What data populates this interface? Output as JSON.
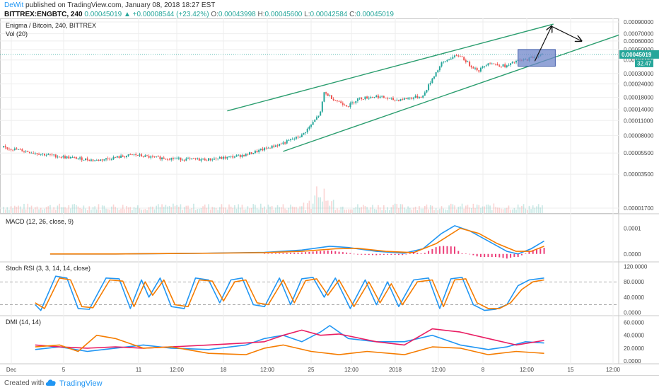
{
  "header": {
    "author": "DeWit",
    "published_text": "published on TradingView.com, January 08, 2018 18:27 EST",
    "symbol": "BITTREX:ENGBTC, 240",
    "last_price": "0.00045019",
    "change": "+0.00008544 (+23.42%)",
    "open_label": "O:",
    "open": "0.00043998",
    "high_label": "H:",
    "high": "0.00045600",
    "low_label": "L:",
    "low": "0.00042584",
    "close_label": "C:",
    "close": "0.00045019"
  },
  "footer": {
    "created_with": "Created with",
    "brand": "TradingView"
  },
  "colors": {
    "up": "#26a69a",
    "down": "#ef5350",
    "channel": "#2a9d6e",
    "macd": "#2196f3",
    "signal": "#f57c00",
    "histogram": "#e91e63",
    "di_plus": "#2196f3",
    "di_minus": "#e91e63",
    "adx": "#f57c00",
    "target_box": "#6f86c9"
  },
  "chart_data": [
    {
      "type": "candlestick",
      "title": "Enigma / Bitcoin, 240, BITTREX",
      "volume_label": "Vol (20)",
      "y_scale": "log",
      "y_ticks": [
        "0.00090000",
        "0.00070000",
        "0.00060000",
        "0.00050000",
        "0.00040000",
        "0.00030000",
        "0.00024000",
        "0.00018000",
        "0.00014000",
        "0.00011000",
        "0.00008000",
        "0.00005500",
        "0.00003500",
        "0.00001700"
      ],
      "last_price_tag": "0.00045019",
      "volume_tag": "32.47",
      "x_ticks": [
        "Dec",
        "5",
        "11",
        "12:00",
        "18",
        "12:00",
        "25",
        "12:00",
        "2018",
        "12:00",
        "8",
        "12:00",
        "15",
        "12:00"
      ],
      "close_path": [
        [
          0,
          6.2e-05
        ],
        [
          10,
          5.8e-05
        ],
        [
          20,
          5.4e-05
        ],
        [
          30,
          5.1e-05
        ],
        [
          40,
          4.9e-05
        ],
        [
          50,
          4.7e-05
        ],
        [
          60,
          5e-05
        ],
        [
          70,
          5.3e-05
        ],
        [
          80,
          5e-05
        ],
        [
          90,
          4.9e-05
        ],
        [
          100,
          4.8e-05
        ],
        [
          110,
          4.8e-05
        ],
        [
          120,
          5e-05
        ],
        [
          130,
          5.3e-05
        ],
        [
          140,
          6e-05
        ],
        [
          150,
          6.8e-05
        ],
        [
          160,
          8e-05
        ],
        [
          165,
          0.0001
        ],
        [
          170,
          0.00013
        ],
        [
          172,
          0.0002
        ],
        [
          178,
          0.00017
        ],
        [
          185,
          0.00015
        ],
        [
          190,
          0.000175
        ],
        [
          200,
          0.000185
        ],
        [
          210,
          0.00017
        ],
        [
          220,
          0.00018
        ],
        [
          225,
          0.000185
        ],
        [
          230,
          0.00027
        ],
        [
          235,
          0.00037
        ],
        [
          240,
          0.00042
        ],
        [
          245,
          0.00044
        ],
        [
          250,
          0.00036
        ],
        [
          255,
          0.00032
        ],
        [
          260,
          0.00038
        ],
        [
          265,
          0.00036
        ],
        [
          270,
          0.00035
        ],
        [
          275,
          0.00039
        ],
        [
          280,
          0.0004
        ],
        [
          285,
          0.00043
        ],
        [
          290,
          0.00045
        ]
      ],
      "channel_upper": [
        [
          120,
          0.000135
        ],
        [
          295,
          0.00086
        ]
      ],
      "channel_lower": [
        [
          150,
          5.7e-05
        ],
        [
          330,
          0.00068
        ]
      ],
      "target_box": {
        "x_start": 276,
        "x_end": 296,
        "price_low": 0.00035,
        "price_high": 0.0005
      },
      "arrows": [
        [
          [
            285,
            0.00039
          ],
          [
            294,
            0.00082
          ]
        ],
        [
          [
            294,
            0.00082
          ],
          [
            310,
            0.0006
          ]
        ]
      ]
    },
    {
      "type": "line",
      "title": "MACD (12, 26, close, 9)",
      "y_ticks": [
        "0.0001",
        "0.0000"
      ],
      "series": [
        {
          "name": "MACD",
          "values": [
            [
              25,
              0.0
            ],
            [
              60,
              0.0
            ],
            [
              100,
              2e-06
            ],
            [
              140,
              6e-06
            ],
            [
              160,
              1.5e-05
            ],
            [
              175,
              3e-05
            ],
            [
              185,
              2.5e-05
            ],
            [
              200,
              1e-05
            ],
            [
              215,
              3e-06
            ],
            [
              225,
              2e-05
            ],
            [
              235,
              8e-05
            ],
            [
              242,
              0.00011
            ],
            [
              250,
              9e-05
            ],
            [
              260,
              5e-05
            ],
            [
              270,
              1e-05
            ],
            [
              276,
              0.0
            ],
            [
              283,
              2e-05
            ],
            [
              290,
              5e-05
            ]
          ]
        },
        {
          "name": "Signal",
          "values": [
            [
              25,
              0.0
            ],
            [
              60,
              0.0
            ],
            [
              100,
              2e-06
            ],
            [
              140,
              5e-06
            ],
            [
              160,
              1e-05
            ],
            [
              178,
              2e-05
            ],
            [
              190,
              2.2e-05
            ],
            [
              205,
              1e-05
            ],
            [
              220,
              5e-06
            ],
            [
              232,
              4e-05
            ],
            [
              245,
              0.0001
            ],
            [
              255,
              8e-05
            ],
            [
              265,
              4e-05
            ],
            [
              275,
              1e-05
            ],
            [
              283,
              1e-05
            ],
            [
              290,
              3e-05
            ]
          ]
        }
      ]
    },
    {
      "type": "line",
      "title": "Stoch RSI (3, 3, 14, 14, close)",
      "y_ticks": [
        "120.0000",
        "80.0000",
        "40.0000",
        "0.0000"
      ],
      "series": [
        {
          "name": "K",
          "values": [
            [
              17,
              20
            ],
            [
              20,
              5
            ],
            [
              28,
              95
            ],
            [
              34,
              90
            ],
            [
              40,
              10
            ],
            [
              46,
              8
            ],
            [
              55,
              90
            ],
            [
              62,
              88
            ],
            [
              68,
              10
            ],
            [
              74,
              85
            ],
            [
              78,
              40
            ],
            [
              84,
              90
            ],
            [
              90,
              15
            ],
            [
              97,
              10
            ],
            [
              103,
              90
            ],
            [
              110,
              85
            ],
            [
              116,
              25
            ],
            [
              122,
              85
            ],
            [
              128,
              90
            ],
            [
              134,
              20
            ],
            [
              140,
              15
            ],
            [
              148,
              90
            ],
            [
              154,
              20
            ],
            [
              160,
              88
            ],
            [
              166,
              92
            ],
            [
              172,
              40
            ],
            [
              178,
              90
            ],
            [
              186,
              10
            ],
            [
              194,
              85
            ],
            [
              200,
              20
            ],
            [
              206,
              80
            ],
            [
              212,
              15
            ],
            [
              220,
              85
            ],
            [
              228,
              90
            ],
            [
              234,
              10
            ],
            [
              240,
              88
            ],
            [
              246,
              92
            ],
            [
              252,
              20
            ],
            [
              258,
              5
            ],
            [
              264,
              8
            ],
            [
              270,
              20
            ],
            [
              276,
              70
            ],
            [
              282,
              85
            ],
            [
              290,
              90
            ]
          ]
        },
        {
          "name": "D",
          "values": [
            [
              17,
              25
            ],
            [
              22,
              10
            ],
            [
              30,
              90
            ],
            [
              36,
              85
            ],
            [
              42,
              15
            ],
            [
              48,
              12
            ],
            [
              57,
              85
            ],
            [
              64,
              82
            ],
            [
              70,
              15
            ],
            [
              76,
              80
            ],
            [
              80,
              45
            ],
            [
              86,
              85
            ],
            [
              92,
              20
            ],
            [
              99,
              15
            ],
            [
              105,
              85
            ],
            [
              112,
              82
            ],
            [
              118,
              30
            ],
            [
              124,
              80
            ],
            [
              130,
              85
            ],
            [
              136,
              25
            ],
            [
              142,
              20
            ],
            [
              150,
              85
            ],
            [
              156,
              25
            ],
            [
              162,
              83
            ],
            [
              168,
              88
            ],
            [
              174,
              45
            ],
            [
              180,
              85
            ],
            [
              188,
              15
            ],
            [
              196,
              80
            ],
            [
              202,
              25
            ],
            [
              208,
              75
            ],
            [
              214,
              20
            ],
            [
              222,
              80
            ],
            [
              230,
              85
            ],
            [
              236,
              15
            ],
            [
              242,
              85
            ],
            [
              248,
              88
            ],
            [
              254,
              25
            ],
            [
              260,
              10
            ],
            [
              266,
              10
            ],
            [
              272,
              25
            ],
            [
              278,
              60
            ],
            [
              284,
              80
            ],
            [
              290,
              85
            ]
          ]
        }
      ]
    },
    {
      "type": "line",
      "title": "DMI (14, 14)",
      "y_ticks": [
        "60.0000",
        "40.0000",
        "20.0000",
        "0.0000"
      ],
      "series": [
        {
          "name": "DI+",
          "values": [
            [
              17,
              18
            ],
            [
              30,
              22
            ],
            [
              45,
              15
            ],
            [
              60,
              20
            ],
            [
              75,
              25
            ],
            [
              90,
              20
            ],
            [
              110,
              18
            ],
            [
              130,
              25
            ],
            [
              140,
              35
            ],
            [
              150,
              40
            ],
            [
              160,
              30
            ],
            [
              170,
              45
            ],
            [
              175,
              55
            ],
            [
              185,
              35
            ],
            [
              200,
              30
            ],
            [
              215,
              30
            ],
            [
              230,
              40
            ],
            [
              245,
              25
            ],
            [
              260,
              18
            ],
            [
              270,
              22
            ],
            [
              280,
              30
            ],
            [
              290,
              28
            ]
          ]
        },
        {
          "name": "DI-",
          "values": [
            [
              17,
              25
            ],
            [
              30,
              22
            ],
            [
              45,
              20
            ],
            [
              60,
              22
            ],
            [
              75,
              20
            ],
            [
              90,
              22
            ],
            [
              110,
              25
            ],
            [
              130,
              28
            ],
            [
              140,
              30
            ],
            [
              150,
              40
            ],
            [
              160,
              48
            ],
            [
              170,
              40
            ],
            [
              180,
              42
            ],
            [
              200,
              30
            ],
            [
              215,
              25
            ],
            [
              230,
              50
            ],
            [
              245,
              45
            ],
            [
              260,
              35
            ],
            [
              275,
              25
            ],
            [
              290,
              32
            ]
          ]
        },
        {
          "name": "ADX",
          "values": [
            [
              17,
              22
            ],
            [
              30,
              25
            ],
            [
              40,
              15
            ],
            [
              50,
              40
            ],
            [
              60,
              35
            ],
            [
              75,
              20
            ],
            [
              90,
              22
            ],
            [
              110,
              12
            ],
            [
              130,
              10
            ],
            [
              140,
              20
            ],
            [
              150,
              25
            ],
            [
              165,
              15
            ],
            [
              180,
              10
            ],
            [
              195,
              15
            ],
            [
              215,
              10
            ],
            [
              230,
              22
            ],
            [
              245,
              20
            ],
            [
              260,
              10
            ],
            [
              275,
              15
            ],
            [
              290,
              12
            ]
          ]
        }
      ]
    }
  ]
}
